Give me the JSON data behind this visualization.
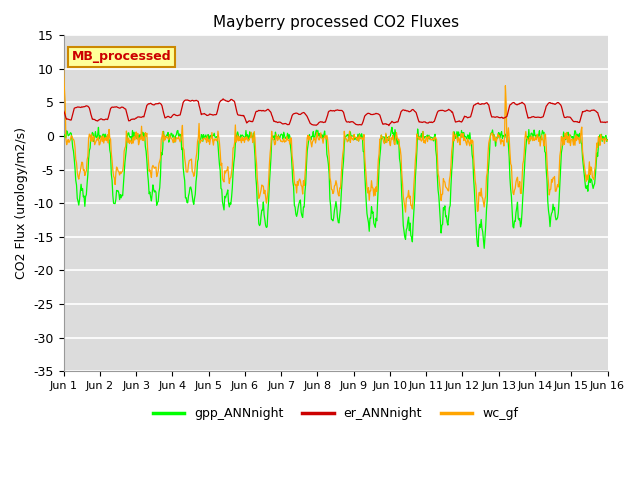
{
  "title": "Mayberry processed CO2 Fluxes",
  "ylabel": "CO2 Flux (urology/m2/s)",
  "xlabel": "",
  "ylim": [
    -35,
    15
  ],
  "yticks": [
    -35,
    -30,
    -25,
    -20,
    -15,
    -10,
    -5,
    0,
    5,
    10,
    15
  ],
  "xtick_labels": [
    "Jun 1",
    "Jun 2",
    "Jun 3",
    "Jun 4",
    "Jun 5",
    "Jun 6",
    "Jun 7",
    "Jun 8",
    "Jun 9",
    "Jun 10",
    "Jun 11",
    "Jun 12",
    "Jun 13",
    "Jun 14",
    "Jun 15",
    "Jun 16"
  ],
  "color_gpp": "#00FF00",
  "color_er": "#CC0000",
  "color_wc": "#FFA500",
  "bg_color": "#DCDCDC",
  "legend_box_label": "MB_processed",
  "legend_box_bg": "#FFFF99",
  "legend_box_edge": "#CC8800",
  "n_days": 15,
  "half_hours_per_day": 48,
  "day_amplitudes_gpp": [
    18,
    19,
    19,
    19,
    20,
    26,
    23,
    24,
    26,
    30,
    26,
    31,
    26,
    25,
    15
  ],
  "day_amplitudes_wc": [
    14,
    15,
    15,
    15,
    17,
    21,
    18,
    19,
    20,
    24,
    20,
    24,
    20,
    20,
    15
  ],
  "day_er_base": [
    3.5,
    3.5,
    4.0,
    4.5,
    4.5,
    3.0,
    2.5,
    3.0,
    2.5,
    3.0,
    3.0,
    4.0,
    4.0,
    4.0,
    3.0
  ]
}
